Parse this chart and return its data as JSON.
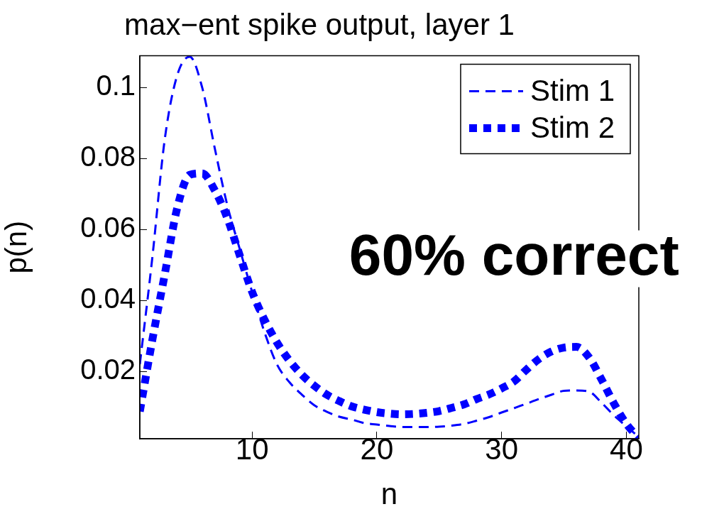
{
  "chart_data": {
    "type": "line",
    "title": "max−ent spike output, layer 1",
    "xlabel": "n",
    "ylabel": "p(n)",
    "x": [
      1,
      2,
      3,
      4,
      5,
      6,
      7,
      8,
      9,
      10,
      11,
      12,
      13,
      14,
      15,
      16,
      17,
      18,
      19,
      20,
      21,
      22,
      23,
      24,
      25,
      26,
      27,
      28,
      29,
      30,
      31,
      32,
      33,
      34,
      35,
      36,
      37,
      38,
      39,
      40,
      41
    ],
    "series": [
      {
        "name": "Stim 1",
        "color": "#0000ff",
        "line_style": "dashed",
        "values": [
          0.022,
          0.052,
          0.0855,
          0.1035,
          0.1087,
          0.1,
          0.083,
          0.067,
          0.0546,
          0.0424,
          0.031,
          0.0219,
          0.0169,
          0.0134,
          0.0104,
          0.0086,
          0.0072,
          0.0064,
          0.0054,
          0.005,
          0.0046,
          0.0043,
          0.0043,
          0.0043,
          0.0044,
          0.0047,
          0.0052,
          0.0061,
          0.0071,
          0.0084,
          0.0096,
          0.0109,
          0.0122,
          0.0134,
          0.0145,
          0.0146,
          0.0143,
          0.0112,
          0.0076,
          0.0045,
          0.0015
        ]
      },
      {
        "name": "Stim 2",
        "color": "#0000ff",
        "line_style": "dotted",
        "values": [
          0.0087,
          0.0288,
          0.0474,
          0.0661,
          0.0754,
          0.0758,
          0.0711,
          0.0633,
          0.0528,
          0.0424,
          0.0345,
          0.0281,
          0.023,
          0.019,
          0.0159,
          0.0134,
          0.0116,
          0.0101,
          0.0092,
          0.0085,
          0.0081,
          0.0079,
          0.008,
          0.0083,
          0.0088,
          0.0097,
          0.0107,
          0.0122,
          0.0135,
          0.0152,
          0.0172,
          0.0205,
          0.0235,
          0.0256,
          0.0267,
          0.0269,
          0.024,
          0.0178,
          0.011,
          0.0052,
          0.0012
        ]
      }
    ],
    "xlim": [
      1,
      41
    ],
    "xticks": [
      10,
      20,
      30,
      40
    ],
    "ylim": [
      0.001,
      0.109
    ],
    "yticks": [
      0.02,
      0.04,
      0.06,
      0.08,
      {
        "value": 0.1,
        "label": "0.1"
      }
    ],
    "grid": false,
    "legend": "top right",
    "marker": "none",
    "annotations": [
      "60% correct"
    ]
  }
}
